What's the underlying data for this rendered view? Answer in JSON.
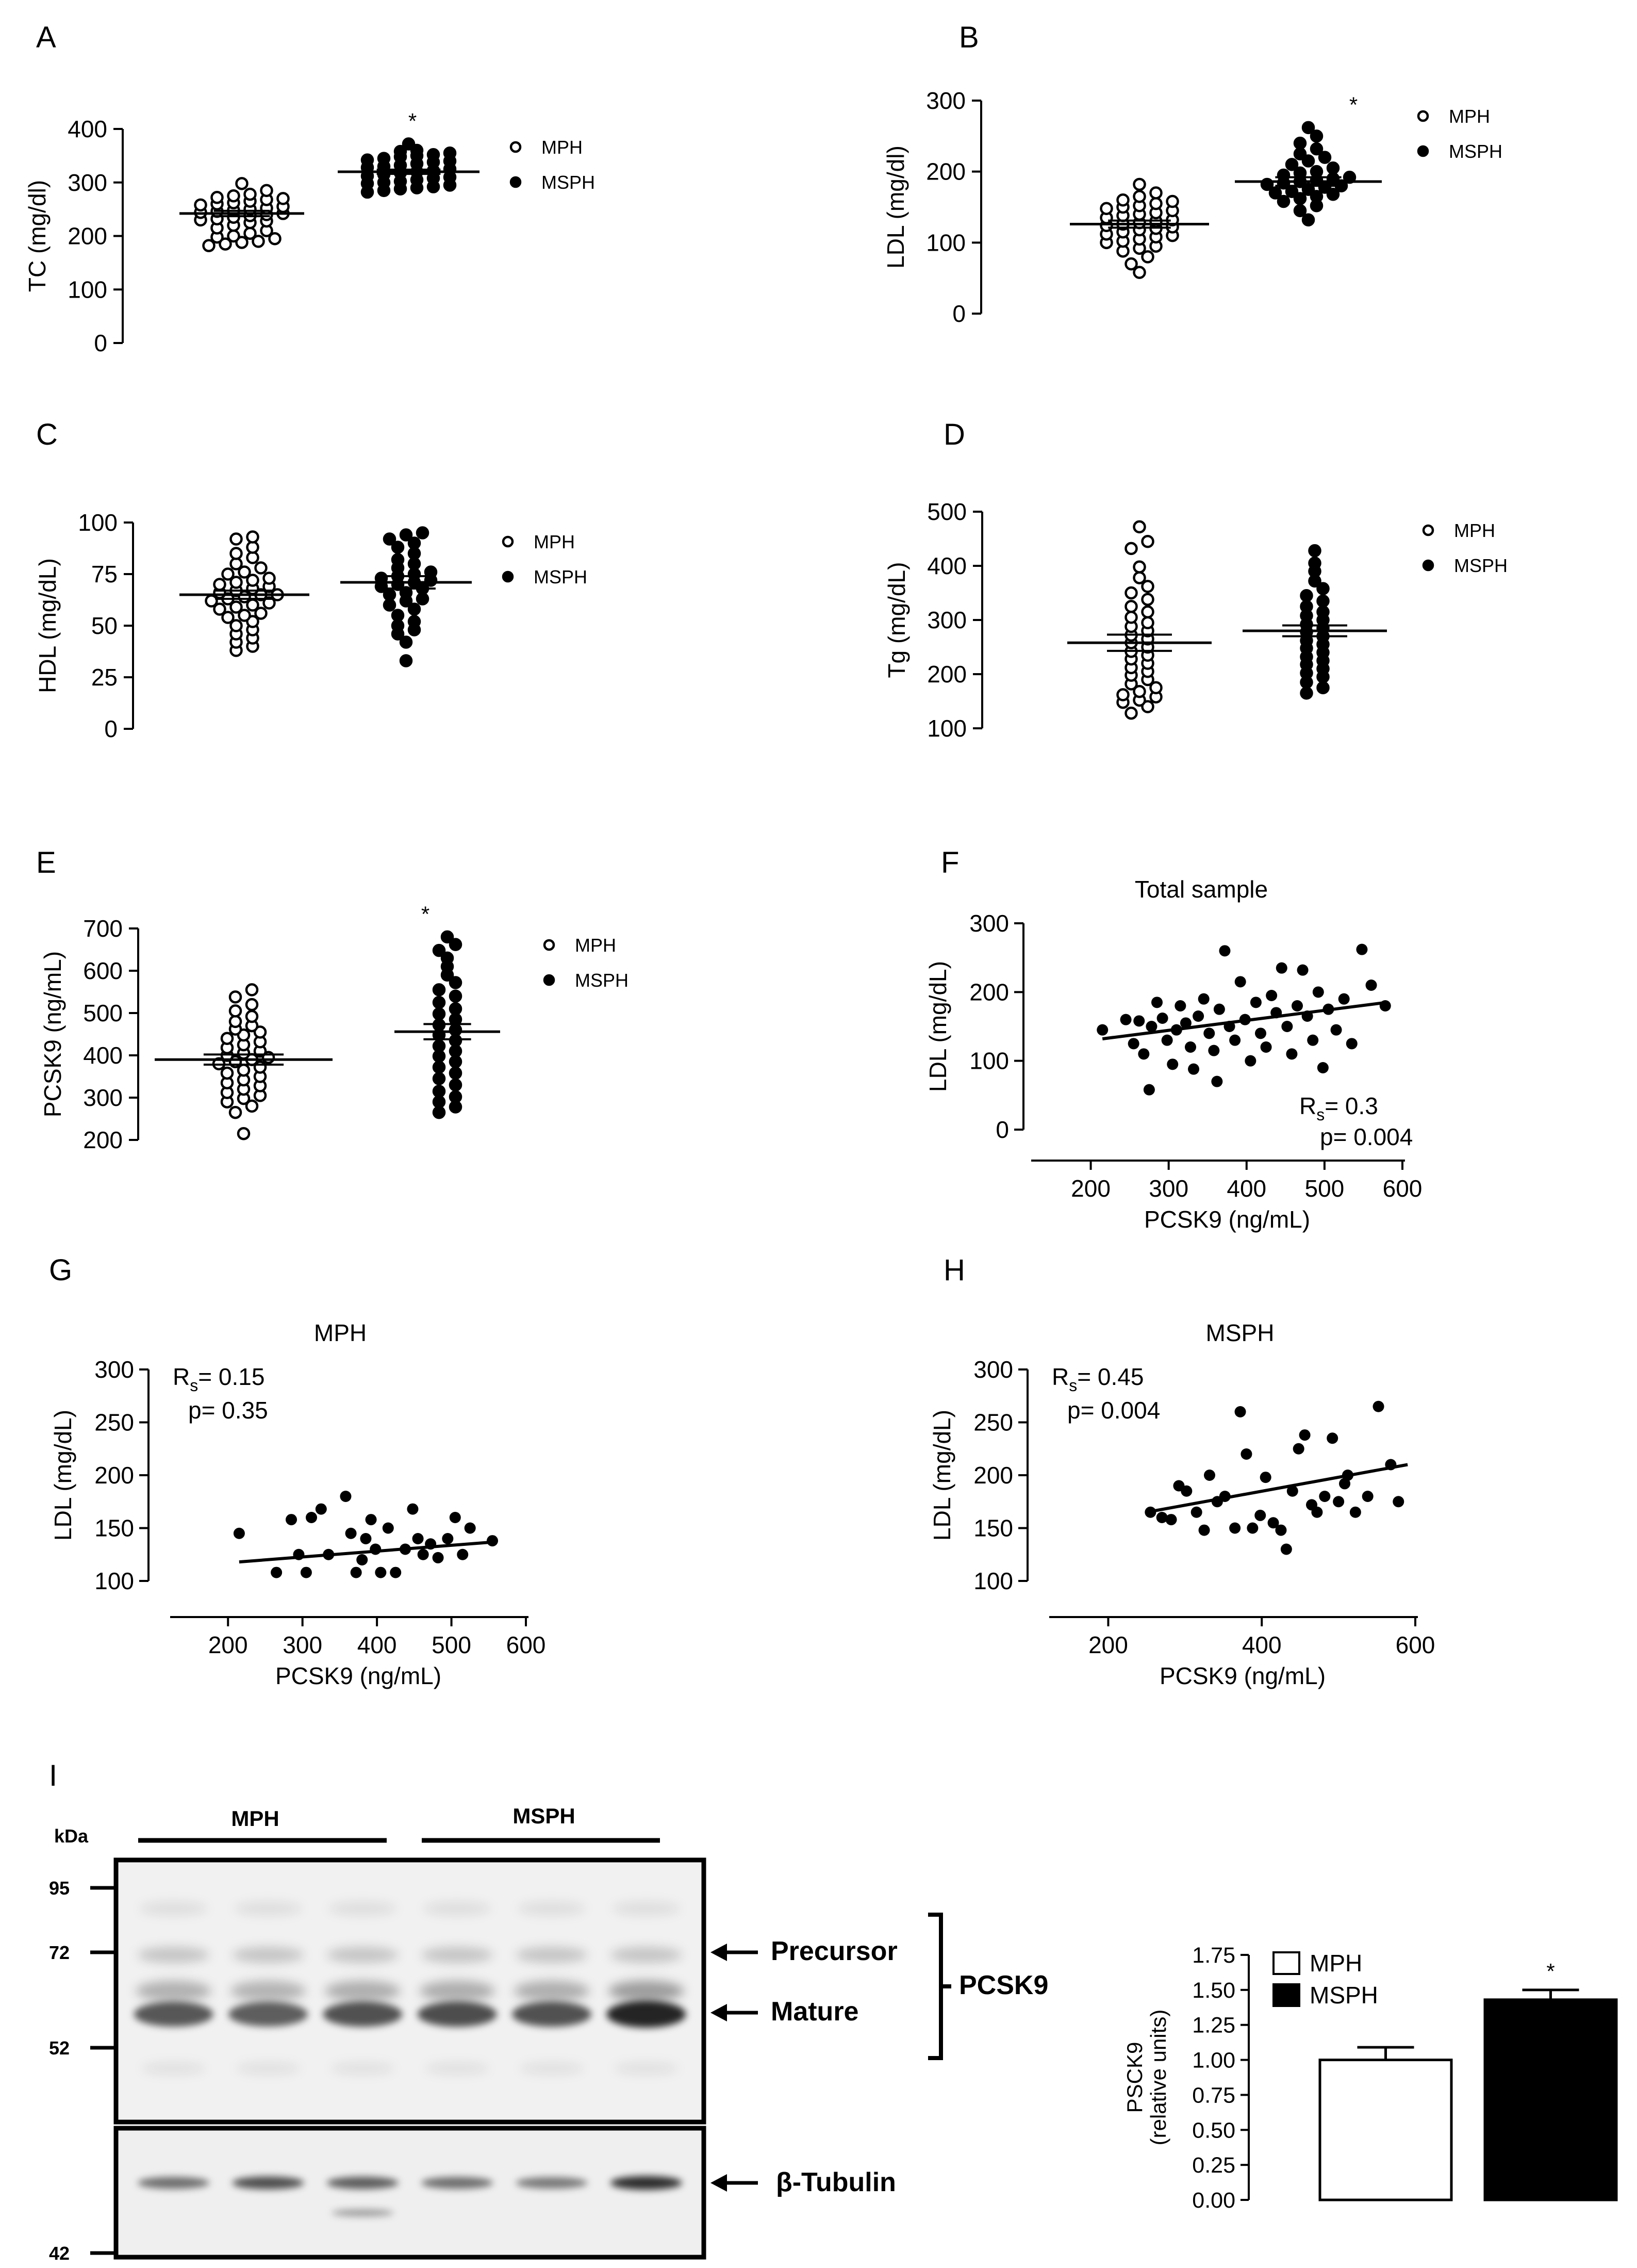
{
  "legend": {
    "mph": "MPH",
    "msph": "MSPH"
  },
  "panel_letters": [
    "A",
    "B",
    "C",
    "D",
    "E",
    "F",
    "G",
    "H",
    "I"
  ],
  "chart_data": [
    {
      "id": "A",
      "type": "scatter",
      "ylabel": "TC (mg/dl)",
      "ylim": [
        0,
        400
      ],
      "yticks": [
        0,
        100,
        200,
        300,
        400
      ],
      "groups": [
        {
          "name": "MPH",
          "mean": 242,
          "sem": 5,
          "filled": false,
          "values": [
            182,
            185,
            188,
            190,
            195,
            198,
            200,
            205,
            210,
            215,
            220,
            225,
            228,
            230,
            232,
            235,
            238,
            240,
            242,
            244,
            246,
            248,
            250,
            252,
            255,
            258,
            260,
            262,
            265,
            268,
            270,
            272,
            275,
            278,
            285,
            298
          ]
        },
        {
          "name": "MSPH",
          "mean": 320,
          "sem": 4,
          "filled": true,
          "star": "*",
          "values": [
            282,
            285,
            288,
            290,
            292,
            295,
            298,
            300,
            302,
            305,
            308,
            310,
            312,
            315,
            318,
            320,
            322,
            325,
            328,
            330,
            332,
            335,
            338,
            340,
            342,
            345,
            348,
            350,
            352,
            355,
            358,
            360,
            372
          ]
        }
      ]
    },
    {
      "id": "B",
      "type": "scatter",
      "ylabel": "LDL (mg/dl)",
      "ylim": [
        0,
        300
      ],
      "yticks": [
        0,
        100,
        200,
        300
      ],
      "groups": [
        {
          "name": "MPH",
          "mean": 126,
          "sem": 5,
          "filled": false,
          "values": [
            58,
            70,
            80,
            88,
            92,
            95,
            100,
            102,
            105,
            108,
            110,
            112,
            115,
            118,
            120,
            122,
            124,
            126,
            128,
            130,
            132,
            135,
            138,
            140,
            142,
            145,
            148,
            150,
            152,
            155,
            158,
            160,
            165,
            170,
            182
          ]
        },
        {
          "name": "MSPH",
          "mean": 186,
          "sem": 6,
          "filled": true,
          "star": "*",
          "values": [
            132,
            145,
            152,
            158,
            162,
            165,
            168,
            170,
            172,
            175,
            178,
            180,
            182,
            184,
            186,
            188,
            190,
            192,
            195,
            198,
            200,
            205,
            210,
            215,
            220,
            225,
            232,
            240,
            250,
            262
          ]
        }
      ]
    },
    {
      "id": "C",
      "type": "scatter",
      "ylabel": "HDL (mg/dL)",
      "ylim": [
        0,
        100
      ],
      "yticks": [
        0,
        25,
        50,
        75,
        100
      ],
      "groups": [
        {
          "name": "MPH",
          "mean": 65,
          "sem": 2,
          "filled": false,
          "values": [
            38,
            40,
            42,
            44,
            46,
            48,
            50,
            52,
            54,
            55,
            56,
            58,
            59,
            60,
            61,
            62,
            63,
            64,
            65,
            65,
            66,
            67,
            68,
            69,
            70,
            71,
            72,
            73,
            75,
            76,
            78,
            80,
            83,
            85,
            88,
            92,
            93
          ]
        },
        {
          "name": "MSPH",
          "mean": 71,
          "sem": 3,
          "filled": true,
          "values": [
            33,
            42,
            46,
            48,
            50,
            52,
            55,
            58,
            60,
            62,
            63,
            65,
            66,
            68,
            69,
            70,
            71,
            72,
            73,
            74,
            75,
            76,
            78,
            80,
            82,
            85,
            88,
            90,
            92,
            94,
            95
          ]
        }
      ]
    },
    {
      "id": "D",
      "type": "scatter",
      "ylabel": "Tg (mg/dL)",
      "ylim": [
        100,
        500
      ],
      "yticks": [
        100,
        200,
        300,
        400,
        500
      ],
      "groups": [
        {
          "name": "MPH",
          "mean": 258,
          "sem": 15,
          "filled": false,
          "values": [
            128,
            140,
            148,
            152,
            158,
            162,
            168,
            175,
            182,
            190,
            198,
            205,
            212,
            220,
            228,
            235,
            242,
            250,
            258,
            265,
            272,
            280,
            288,
            295,
            305,
            315,
            325,
            338,
            350,
            362,
            378,
            398,
            432,
            445,
            472
          ]
        },
        {
          "name": "MSPH",
          "mean": 280,
          "sem": 10,
          "filled": true,
          "values": [
            165,
            175,
            185,
            195,
            202,
            210,
            218,
            225,
            232,
            240,
            248,
            255,
            262,
            270,
            278,
            285,
            292,
            300,
            308,
            315,
            325,
            335,
            345,
            358,
            372,
            390,
            405,
            428
          ]
        }
      ]
    },
    {
      "id": "E",
      "type": "scatter",
      "ylabel": "PCSK9 (ng/mL)",
      "ylim": [
        200,
        700
      ],
      "yticks": [
        200,
        300,
        400,
        500,
        600,
        700
      ],
      "groups": [
        {
          "name": "MPH",
          "mean": 390,
          "sem": 12,
          "filled": false,
          "values": [
            215,
            265,
            280,
            290,
            298,
            305,
            312,
            320,
            328,
            335,
            342,
            350,
            358,
            365,
            372,
            380,
            385,
            390,
            395,
            400,
            405,
            410,
            418,
            425,
            432,
            440,
            448,
            455,
            462,
            470,
            480,
            492,
            505,
            520,
            538,
            555
          ]
        },
        {
          "name": "MSPH",
          "mean": 456,
          "sem": 18,
          "filled": true,
          "star": "*",
          "values": [
            265,
            278,
            290,
            302,
            315,
            330,
            345,
            358,
            372,
            385,
            398,
            410,
            422,
            435,
            448,
            460,
            472,
            485,
            498,
            510,
            525,
            540,
            555,
            572,
            590,
            610,
            630,
            648,
            662,
            680
          ]
        }
      ]
    },
    {
      "id": "F",
      "type": "scatter",
      "title": "Total sample",
      "xlabel": "PCSK9 (ng/mL)",
      "ylabel": "LDL (mg/dL)",
      "xlim": [
        150,
        600
      ],
      "xticks": [
        200,
        300,
        400,
        500,
        600
      ],
      "ylim": [
        0,
        300
      ],
      "yticks": [
        0,
        100,
        200,
        300
      ],
      "rs": "0.3",
      "p": "0.004",
      "fit": {
        "x1": 215,
        "y1": 132,
        "x2": 580,
        "y2": 185
      },
      "points": [
        [
          215,
          145
        ],
        [
          245,
          160
        ],
        [
          255,
          125
        ],
        [
          262,
          158
        ],
        [
          268,
          110
        ],
        [
          275,
          58
        ],
        [
          278,
          150
        ],
        [
          285,
          185
        ],
        [
          292,
          162
        ],
        [
          298,
          130
        ],
        [
          305,
          95
        ],
        [
          310,
          145
        ],
        [
          315,
          180
        ],
        [
          322,
          155
        ],
        [
          328,
          120
        ],
        [
          332,
          88
        ],
        [
          338,
          165
        ],
        [
          345,
          190
        ],
        [
          352,
          140
        ],
        [
          358,
          115
        ],
        [
          362,
          70
        ],
        [
          365,
          175
        ],
        [
          372,
          260
        ],
        [
          378,
          150
        ],
        [
          385,
          130
        ],
        [
          392,
          215
        ],
        [
          398,
          160
        ],
        [
          405,
          100
        ],
        [
          412,
          185
        ],
        [
          418,
          140
        ],
        [
          425,
          120
        ],
        [
          432,
          195
        ],
        [
          438,
          170
        ],
        [
          445,
          235
        ],
        [
          452,
          150
        ],
        [
          458,
          110
        ],
        [
          465,
          180
        ],
        [
          472,
          232
        ],
        [
          478,
          165
        ],
        [
          485,
          130
        ],
        [
          492,
          200
        ],
        [
          498,
          90
        ],
        [
          505,
          175
        ],
        [
          515,
          145
        ],
        [
          525,
          190
        ],
        [
          535,
          125
        ],
        [
          548,
          262
        ],
        [
          560,
          210
        ],
        [
          578,
          180
        ]
      ]
    },
    {
      "id": "G",
      "type": "scatter",
      "title": "MPH",
      "xlabel": "PCSK9 (ng/mL)",
      "ylabel": "LDL (mg/dL)",
      "xlim": [
        150,
        600
      ],
      "xticks": [
        200,
        300,
        400,
        500,
        600
      ],
      "ylim": [
        100,
        300
      ],
      "yticks": [
        100,
        150,
        200,
        250,
        300
      ],
      "rs": "0.15",
      "p": "0.35",
      "fit": {
        "x1": 215,
        "y1": 118,
        "x2": 560,
        "y2": 137
      },
      "points": [
        [
          215,
          145
        ],
        [
          265,
          108
        ],
        [
          285,
          158
        ],
        [
          295,
          125
        ],
        [
          305,
          108
        ],
        [
          312,
          160
        ],
        [
          325,
          168
        ],
        [
          335,
          125
        ],
        [
          358,
          180
        ],
        [
          365,
          145
        ],
        [
          372,
          108
        ],
        [
          380,
          120
        ],
        [
          385,
          140
        ],
        [
          392,
          158
        ],
        [
          398,
          130
        ],
        [
          405,
          108
        ],
        [
          415,
          150
        ],
        [
          425,
          108
        ],
        [
          438,
          130
        ],
        [
          448,
          168
        ],
        [
          455,
          140
        ],
        [
          462,
          125
        ],
        [
          472,
          135
        ],
        [
          482,
          122
        ],
        [
          495,
          140
        ],
        [
          505,
          160
        ],
        [
          515,
          125
        ],
        [
          525,
          150
        ],
        [
          555,
          138
        ]
      ]
    },
    {
      "id": "H",
      "type": "scatter",
      "title": "MSPH",
      "xlabel": "PCSK9 (ng/mL)",
      "ylabel": "LDL (mg/dL)",
      "xlim": [
        150,
        600
      ],
      "xticks": [
        200,
        400,
        600
      ],
      "ylim": [
        100,
        300
      ],
      "yticks": [
        100,
        150,
        200,
        250,
        300
      ],
      "rs": "0.45",
      "p": "0.004",
      "fit": {
        "x1": 250,
        "y1": 165,
        "x2": 590,
        "y2": 210
      },
      "points": [
        [
          255,
          165
        ],
        [
          270,
          160
        ],
        [
          282,
          158
        ],
        [
          292,
          190
        ],
        [
          302,
          185
        ],
        [
          315,
          165
        ],
        [
          325,
          148
        ],
        [
          332,
          200
        ],
        [
          342,
          175
        ],
        [
          352,
          180
        ],
        [
          365,
          150
        ],
        [
          372,
          260
        ],
        [
          380,
          220
        ],
        [
          388,
          150
        ],
        [
          398,
          162
        ],
        [
          405,
          198
        ],
        [
          415,
          155
        ],
        [
          425,
          148
        ],
        [
          432,
          130
        ],
        [
          440,
          185
        ],
        [
          448,
          225
        ],
        [
          456,
          238
        ],
        [
          465,
          172
        ],
        [
          472,
          165
        ],
        [
          482,
          180
        ],
        [
          492,
          235
        ],
        [
          500,
          175
        ],
        [
          508,
          192
        ],
        [
          512,
          200
        ],
        [
          522,
          165
        ],
        [
          538,
          180
        ],
        [
          552,
          265
        ],
        [
          568,
          210
        ],
        [
          578,
          175
        ]
      ]
    },
    {
      "id": "I-bar",
      "type": "bar",
      "ylabel": "PSCK9 (relative units)",
      "ylim": [
        0,
        1.75
      ],
      "yticks": [
        "0.00",
        "0.25",
        "0.50",
        "0.75",
        "1.00",
        "1.25",
        "1.50",
        "1.75"
      ],
      "categories": [
        "MPH",
        "MSPH"
      ],
      "values": [
        1.0,
        1.43
      ],
      "errors": [
        0.09,
        0.07
      ],
      "star": [
        "",
        "*"
      ]
    }
  ],
  "blot": {
    "kda_label": "kDa",
    "groups": [
      "MPH",
      "MSPH"
    ],
    "markers": [
      {
        "label": "95",
        "kda": 95
      },
      {
        "label": "72",
        "kda": 72
      },
      {
        "label": "52",
        "kda": 52
      },
      {
        "label": "42",
        "kda": 42
      }
    ],
    "bands": [
      "Precursor",
      "Mature"
    ],
    "bracket_label": "PCSK9",
    "loading_control": "β-Tubulin",
    "lane_count": 6,
    "mature_intensity": [
      0.75,
      0.72,
      0.78,
      0.8,
      0.78,
      1.0
    ],
    "tubulin_intensity": [
      0.6,
      0.75,
      0.68,
      0.6,
      0.55,
      0.9
    ]
  }
}
